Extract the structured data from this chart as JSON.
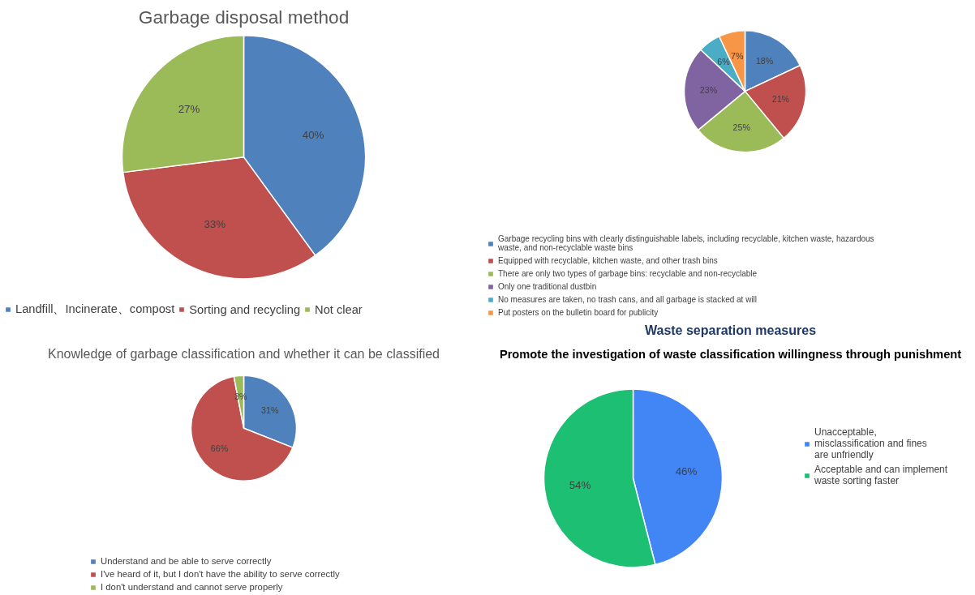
{
  "chart_data": [
    {
      "type": "pie",
      "title": "Garbage disposal method",
      "categories": [
        "Landfill、Incinerate、compost",
        "Sorting and recycling",
        "Not clear"
      ],
      "values": [
        40,
        33,
        27
      ],
      "colors": [
        "#4f81bd",
        "#c0504d",
        "#9bbb59"
      ],
      "value_labels": [
        "40%",
        "33%",
        "27%"
      ],
      "legend": "bottom"
    },
    {
      "type": "pie",
      "title": "Waste separation measures",
      "categories": [
        "Garbage recycling bins with clearly distinguishable labels, including recyclable, kitchen waste, hazardous waste, and non-recyclable waste bins",
        "Equipped with recyclable, kitchen waste, and other trash bins",
        "There are only two types of garbage bins: recyclable and non-recyclable",
        "Only one traditional dustbin",
        "No measures are taken, no trash cans, and all garbage is stacked at will",
        "Put posters on the bulletin board for publicity"
      ],
      "values": [
        18,
        21,
        25,
        23,
        6,
        7
      ],
      "colors": [
        "#4f81bd",
        "#c0504d",
        "#9bbb59",
        "#8064a2",
        "#4bacc6",
        "#f79646"
      ],
      "value_labels": [
        "18%",
        "21%",
        "25%",
        "23%",
        "6%",
        "7%"
      ],
      "legend": "bottom"
    },
    {
      "type": "pie",
      "title": "Knowledge of garbage classification and whether it can be classified",
      "categories": [
        "Understand and be able to serve correctly",
        "I've heard of it, but I don't have the ability to serve correctly",
        "I don't understand and cannot serve properly"
      ],
      "values": [
        31,
        66,
        3
      ],
      "colors": [
        "#4f81bd",
        "#c0504d",
        "#9bbb59"
      ],
      "value_labels": [
        "31%",
        "66%",
        "3%"
      ],
      "legend": "bottom"
    },
    {
      "type": "pie",
      "title": "Promote the investigation of waste classification willingness through punishment",
      "categories": [
        "Unacceptable, misclassification and fines are unfriendly",
        "Acceptable and can implement waste sorting faster"
      ],
      "values": [
        46,
        54
      ],
      "colors": [
        "#4285f4",
        "#1dbf73"
      ],
      "value_labels": [
        "46%",
        "54%"
      ],
      "legend": "right"
    }
  ]
}
